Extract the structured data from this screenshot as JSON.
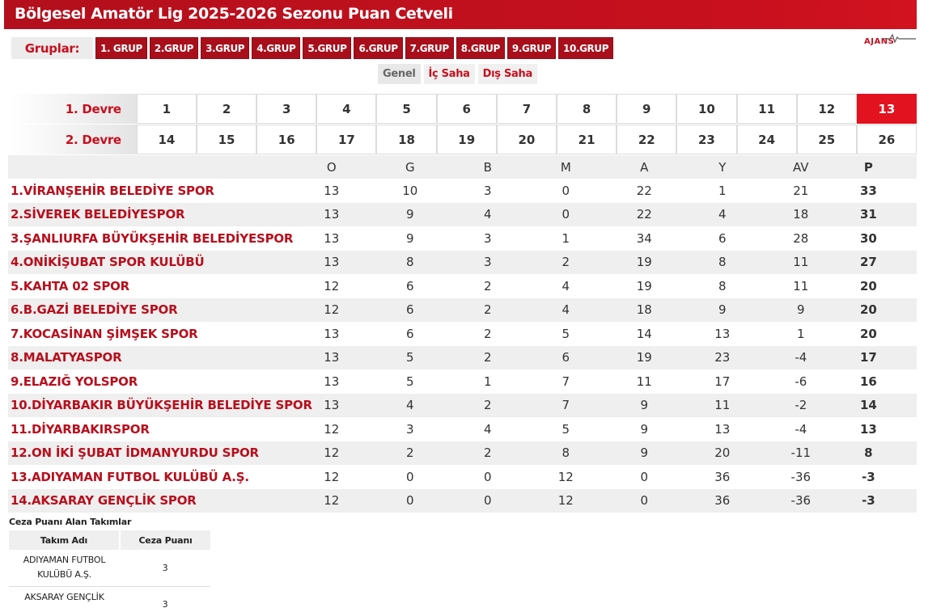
{
  "header": {
    "title": "Bölgesel Amatör Lig 2025-2026 Sezonu Puan Cetveli"
  },
  "groups": {
    "label": "Gruplar:",
    "items": [
      "1. GRUP",
      "2.GRUP",
      "3.GRUP",
      "4.GRUP",
      "5.GRUP",
      "6.GRUP",
      "7.GRUP",
      "8.GRUP",
      "9.GRUP",
      "10.GRUP"
    ]
  },
  "logo": {
    "text": "AJANS"
  },
  "view_tabs": [
    "Genel",
    "İç Saha",
    "Dış Saha"
  ],
  "weeks": {
    "first_half_label": "1. Devre",
    "second_half_label": "2. Devre",
    "first_half": [
      "1",
      "2",
      "3",
      "4",
      "5",
      "6",
      "7",
      "8",
      "9",
      "10",
      "11",
      "12",
      "13"
    ],
    "second_half": [
      "14",
      "15",
      "16",
      "17",
      "18",
      "19",
      "20",
      "21",
      "22",
      "23",
      "24",
      "25",
      "26"
    ],
    "selected": "13",
    "selected_color": "#e3121f"
  },
  "standings": {
    "columns": [
      "O",
      "G",
      "B",
      "M",
      "A",
      "Y",
      "AV",
      "P"
    ],
    "rows": [
      {
        "team": "1.VİRANŞEHİR BELEDİYE SPOR",
        "o": "13",
        "g": "10",
        "b": "3",
        "m": "0",
        "a": "22",
        "y": "1",
        "av": "21",
        "p": "33"
      },
      {
        "team": "2.SİVEREK BELEDİYESPOR",
        "o": "13",
        "g": "9",
        "b": "4",
        "m": "0",
        "a": "22",
        "y": "4",
        "av": "18",
        "p": "31"
      },
      {
        "team": "3.ŞANLIURFA BÜYÜKŞEHİR BELEDİYESPOR",
        "o": "13",
        "g": "9",
        "b": "3",
        "m": "1",
        "a": "34",
        "y": "6",
        "av": "28",
        "p": "30"
      },
      {
        "team": "4.ONİKİŞUBAT SPOR KULÜBÜ",
        "o": "13",
        "g": "8",
        "b": "3",
        "m": "2",
        "a": "19",
        "y": "8",
        "av": "11",
        "p": "27"
      },
      {
        "team": "5.KAHTA 02 SPOR",
        "o": "12",
        "g": "6",
        "b": "2",
        "m": "4",
        "a": "19",
        "y": "8",
        "av": "11",
        "p": "20"
      },
      {
        "team": "6.B.GAZİ BELEDİYE SPOR",
        "o": "12",
        "g": "6",
        "b": "2",
        "m": "4",
        "a": "18",
        "y": "9",
        "av": "9",
        "p": "20"
      },
      {
        "team": "7.KOCASİNAN ŞİMŞEK SPOR",
        "o": "13",
        "g": "6",
        "b": "2",
        "m": "5",
        "a": "14",
        "y": "13",
        "av": "1",
        "p": "20"
      },
      {
        "team": "8.MALATYASPOR",
        "o": "13",
        "g": "5",
        "b": "2",
        "m": "6",
        "a": "19",
        "y": "23",
        "av": "-4",
        "p": "17"
      },
      {
        "team": "9.ELAZIĞ YOLSPOR",
        "o": "13",
        "g": "5",
        "b": "1",
        "m": "7",
        "a": "11",
        "y": "17",
        "av": "-6",
        "p": "16"
      },
      {
        "team": "10.DİYARBAKIR BÜYÜKŞEHİR BELEDİYE SPOR",
        "o": "13",
        "g": "4",
        "b": "2",
        "m": "7",
        "a": "9",
        "y": "11",
        "av": "-2",
        "p": "14"
      },
      {
        "team": "11.DİYARBAKIRSPOR",
        "o": "12",
        "g": "3",
        "b": "4",
        "m": "5",
        "a": "9",
        "y": "13",
        "av": "-4",
        "p": "13"
      },
      {
        "team": "12.ON İKİ ŞUBAT İDMANYURDU SPOR",
        "o": "12",
        "g": "2",
        "b": "2",
        "m": "8",
        "a": "9",
        "y": "20",
        "av": "-11",
        "p": "8"
      },
      {
        "team": "13.ADIYAMAN FUTBOL KULÜBÜ A.Ş.",
        "o": "12",
        "g": "0",
        "b": "0",
        "m": "12",
        "a": "0",
        "y": "36",
        "av": "-36",
        "p": "-3"
      },
      {
        "team": "14.AKSARAY GENÇLİK SPOR",
        "o": "12",
        "g": "0",
        "b": "0",
        "m": "12",
        "a": "0",
        "y": "36",
        "av": "-36",
        "p": "-3"
      }
    ]
  },
  "penalty": {
    "title": "Ceza Puanı Alan Takımlar",
    "columns": [
      "Takım Adı",
      "Ceza Puanı"
    ],
    "rows": [
      {
        "team": "ADIYAMAN FUTBOL KULÜBÜ A.Ş.",
        "points": "3"
      },
      {
        "team": "AKSARAY GENÇLİK SPOR",
        "points": "3"
      }
    ]
  },
  "colors": {
    "brand_red": "#c8101e",
    "team_red": "#b80f1d",
    "row_alt": "#efefef"
  }
}
